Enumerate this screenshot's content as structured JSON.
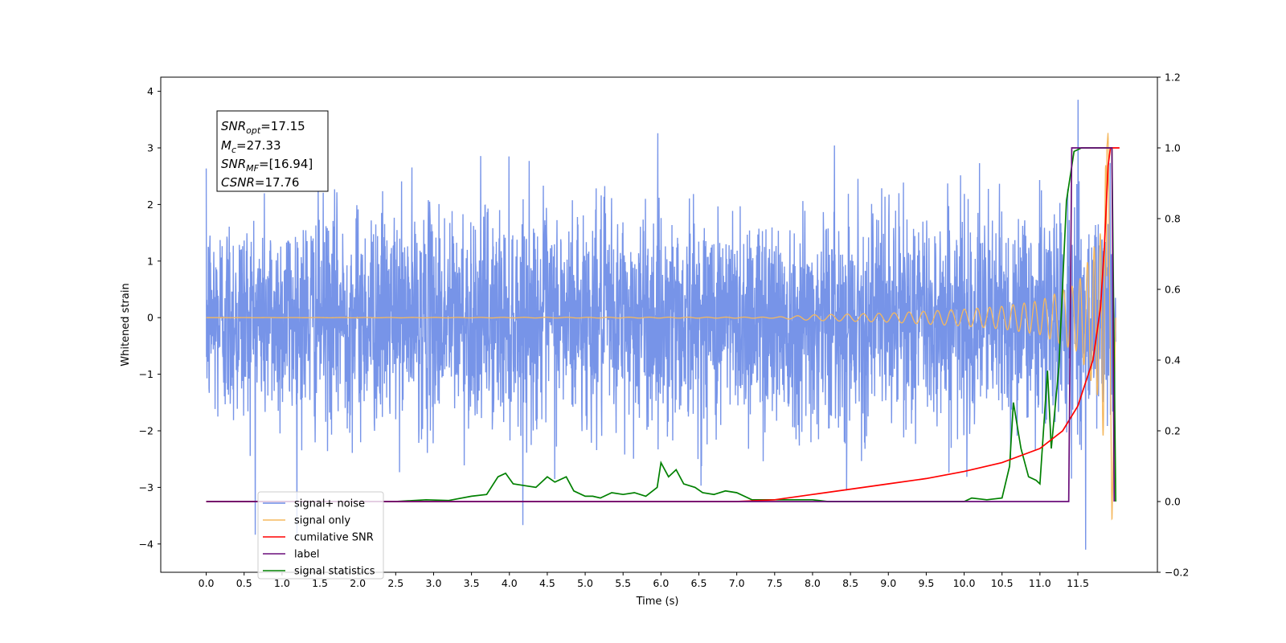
{
  "chart_data": {
    "type": "line",
    "xlabel": "Time (s)",
    "ylabel": "Whitened strain",
    "xlim": [
      -0.6,
      12.55
    ],
    "ylim": [
      -4.5,
      4.25
    ],
    "y2lim": [
      -0.2,
      1.2
    ],
    "xticks": [
      "0.0",
      "0.5",
      "1.0",
      "1.5",
      "2.0",
      "2.5",
      "3.0",
      "3.5",
      "4.0",
      "4.5",
      "5.0",
      "5.5",
      "6.0",
      "6.5",
      "7.0",
      "7.5",
      "8.0",
      "8.5",
      "9.0",
      "9.5",
      "10.0",
      "10.5",
      "11.0",
      "11.5"
    ],
    "yticks": [
      "4",
      "3",
      "2",
      "1",
      "0",
      "−1",
      "−2",
      "−3",
      "−4"
    ],
    "y2ticks": [
      "1.2",
      "1.0",
      "0.8",
      "0.6",
      "0.4",
      "0.2",
      "0.0",
      "−0.2"
    ],
    "grid": false,
    "legend_position": "lower-left",
    "annotation": {
      "snr_opt": "=17.15",
      "mc": "=27.33",
      "snr_mf": "=[16.94]",
      "csnr": "=17.76"
    },
    "series": [
      {
        "name": "signal+ noise",
        "color": "#6b8be6",
        "axis": "left",
        "description": "whitened noise with std ~0.9, spikes to about ±4",
        "x_range": [
          0.0,
          12.0
        ],
        "envelope_peak": 3.85,
        "envelope_trough": -4.1
      },
      {
        "name": "signal only",
        "color": "#f5b85e",
        "axis": "left",
        "description": "chirp",
        "x_range": [
          0.0,
          12.0
        ],
        "amplitude_points": [
          [
            0.0,
            0.0
          ],
          [
            7.5,
            0.01
          ],
          [
            8.0,
            0.05
          ],
          [
            9.0,
            0.08
          ],
          [
            10.0,
            0.15
          ],
          [
            10.5,
            0.2
          ],
          [
            11.0,
            0.3
          ],
          [
            11.5,
            0.6
          ],
          [
            11.8,
            1.5
          ],
          [
            11.9,
            3.3
          ],
          [
            11.95,
            -3.7
          ],
          [
            12.0,
            0.0
          ]
        ]
      },
      {
        "name": "cumilative SNR",
        "color": "#ff0000",
        "axis": "right",
        "points": [
          [
            0.0,
            0.0
          ],
          [
            7.0,
            0.0
          ],
          [
            7.5,
            0.005
          ],
          [
            8.0,
            0.02
          ],
          [
            8.5,
            0.035
          ],
          [
            9.0,
            0.05
          ],
          [
            9.5,
            0.065
          ],
          [
            10.0,
            0.085
          ],
          [
            10.5,
            0.11
          ],
          [
            11.0,
            0.15
          ],
          [
            11.3,
            0.2
          ],
          [
            11.5,
            0.27
          ],
          [
            11.7,
            0.4
          ],
          [
            11.8,
            0.55
          ],
          [
            11.85,
            0.72
          ],
          [
            11.9,
            0.95
          ],
          [
            11.93,
            1.0
          ],
          [
            12.05,
            1.0
          ]
        ]
      },
      {
        "name": "label",
        "color": "#6a0d7a",
        "axis": "right",
        "points": [
          [
            0.0,
            0.0
          ],
          [
            11.38,
            0.0
          ],
          [
            11.42,
            1.0
          ],
          [
            11.95,
            1.0
          ],
          [
            11.98,
            0.0
          ]
        ]
      },
      {
        "name": "signal statistics",
        "color": "#008000",
        "axis": "right",
        "points": [
          [
            0.0,
            0.0
          ],
          [
            2.5,
            0.0
          ],
          [
            2.9,
            0.005
          ],
          [
            3.2,
            0.003
          ],
          [
            3.5,
            0.015
          ],
          [
            3.7,
            0.02
          ],
          [
            3.85,
            0.07
          ],
          [
            3.95,
            0.08
          ],
          [
            4.05,
            0.05
          ],
          [
            4.2,
            0.045
          ],
          [
            4.35,
            0.04
          ],
          [
            4.5,
            0.07
          ],
          [
            4.6,
            0.055
          ],
          [
            4.75,
            0.07
          ],
          [
            4.85,
            0.03
          ],
          [
            5.0,
            0.015
          ],
          [
            5.1,
            0.015
          ],
          [
            5.2,
            0.01
          ],
          [
            5.35,
            0.025
          ],
          [
            5.5,
            0.02
          ],
          [
            5.65,
            0.025
          ],
          [
            5.8,
            0.015
          ],
          [
            5.95,
            0.04
          ],
          [
            6.0,
            0.11
          ],
          [
            6.1,
            0.07
          ],
          [
            6.2,
            0.09
          ],
          [
            6.3,
            0.05
          ],
          [
            6.45,
            0.04
          ],
          [
            6.55,
            0.025
          ],
          [
            6.7,
            0.02
          ],
          [
            6.85,
            0.03
          ],
          [
            7.0,
            0.025
          ],
          [
            7.2,
            0.005
          ],
          [
            7.45,
            0.005
          ],
          [
            7.6,
            0.005
          ],
          [
            7.8,
            0.005
          ],
          [
            8.0,
            0.005
          ],
          [
            8.2,
            0.0
          ],
          [
            10.0,
            0.0
          ],
          [
            10.1,
            0.01
          ],
          [
            10.3,
            0.005
          ],
          [
            10.5,
            0.01
          ],
          [
            10.6,
            0.1
          ],
          [
            10.65,
            0.28
          ],
          [
            10.75,
            0.15
          ],
          [
            10.85,
            0.07
          ],
          [
            10.95,
            0.06
          ],
          [
            11.0,
            0.05
          ],
          [
            11.1,
            0.37
          ],
          [
            11.15,
            0.15
          ],
          [
            11.25,
            0.38
          ],
          [
            11.35,
            0.85
          ],
          [
            11.45,
            0.99
          ],
          [
            11.55,
            1.0
          ],
          [
            11.95,
            1.0
          ],
          [
            12.0,
            0.0
          ]
        ]
      }
    ]
  }
}
